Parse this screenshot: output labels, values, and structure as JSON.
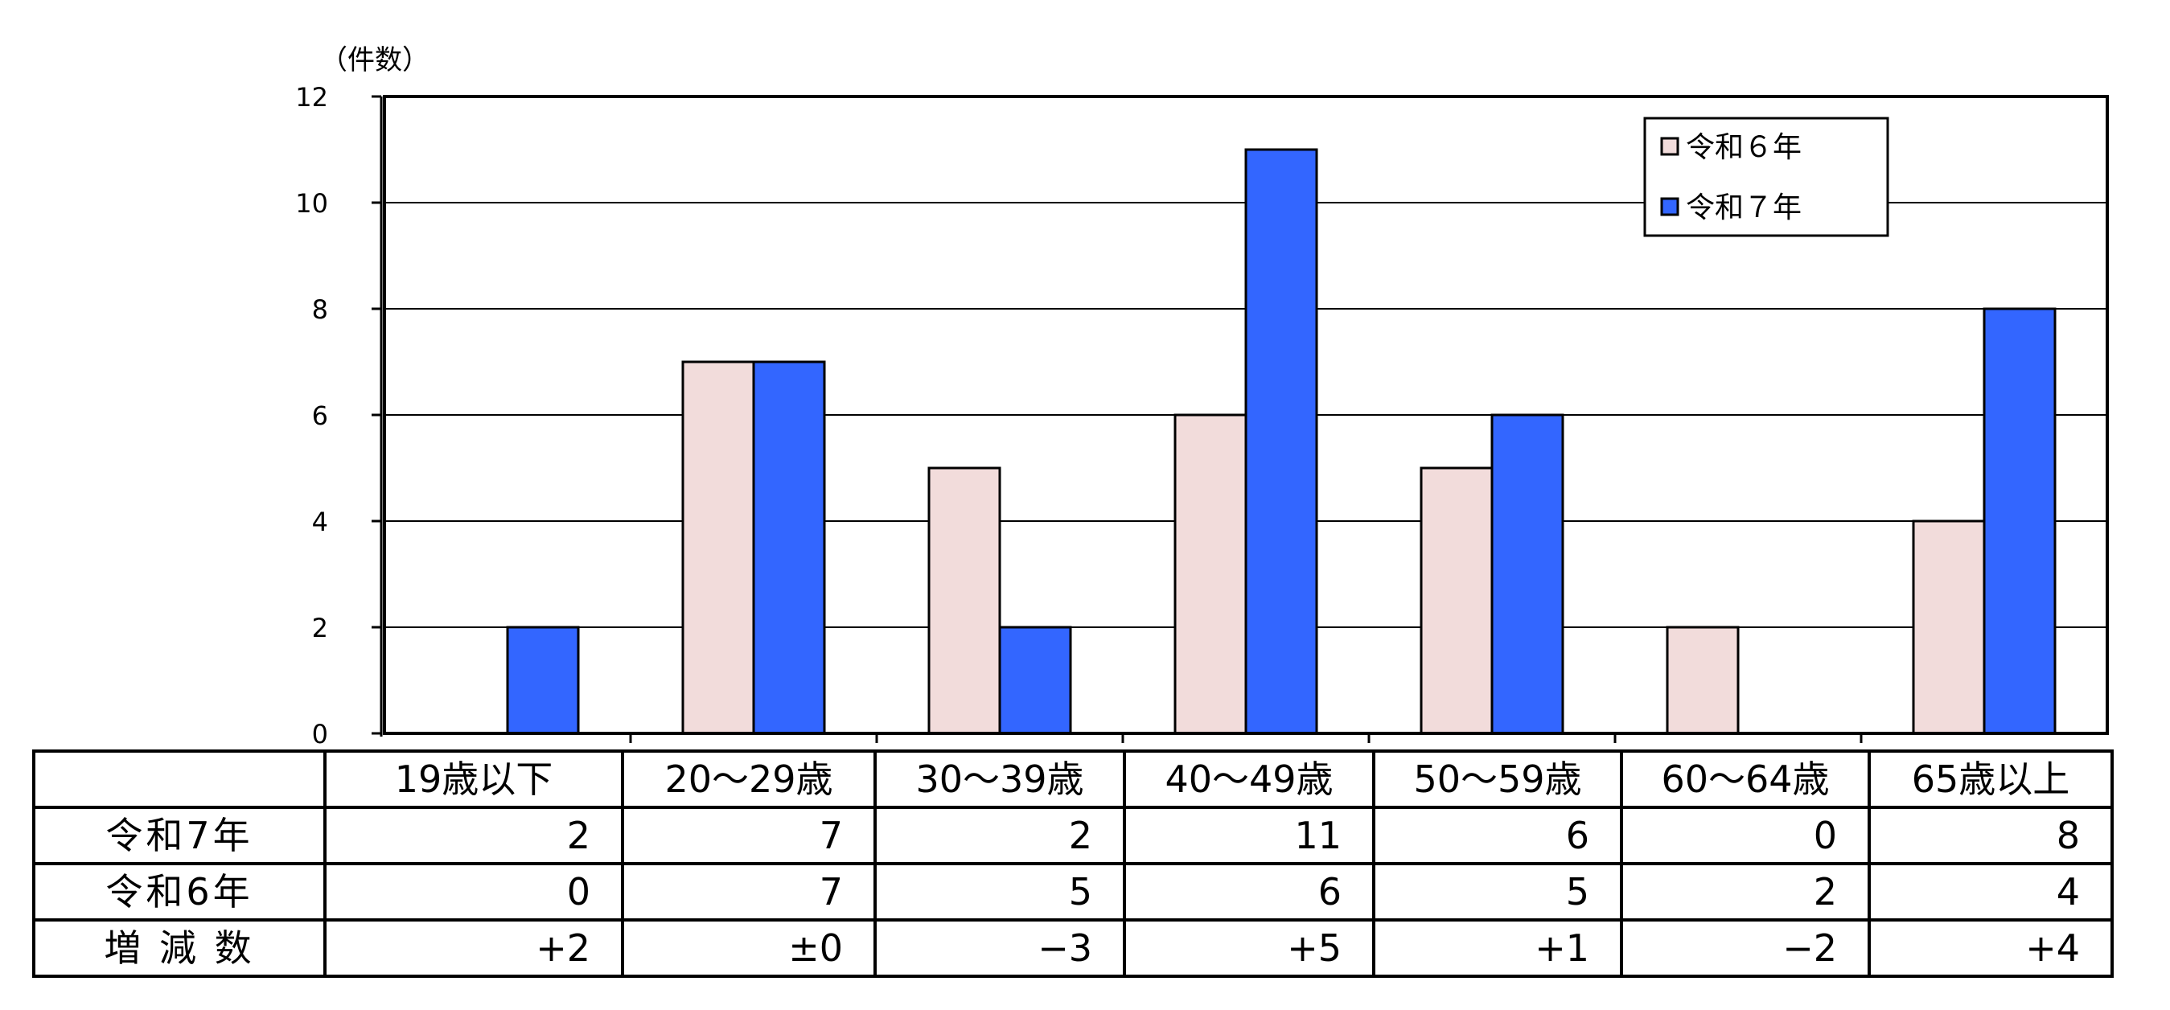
{
  "chart_data": {
    "type": "bar",
    "ylabel": "（件数）",
    "ylim": [
      0,
      12
    ],
    "yticks": [
      0,
      2,
      4,
      6,
      8,
      10,
      12
    ],
    "grid": true,
    "legend_position": "top-right",
    "categories": [
      "19歳以下",
      "20～29歳",
      "30～39歳",
      "40～49歳",
      "50～59歳",
      "60～64歳",
      "65歳以上"
    ],
    "series": [
      {
        "name": "令和６年",
        "color": "#f2dcdb",
        "values": [
          0,
          7,
          5,
          6,
          5,
          2,
          4
        ]
      },
      {
        "name": "令和７年",
        "color": "#3366ff",
        "values": [
          2,
          7,
          2,
          11,
          6,
          0,
          8
        ]
      }
    ]
  },
  "table": {
    "rows": [
      {
        "label": "令和7年",
        "values": [
          "2",
          "7",
          "2",
          "11",
          "6",
          "0",
          "8"
        ]
      },
      {
        "label": "令和6年",
        "values": [
          "0",
          "7",
          "5",
          "6",
          "5",
          "2",
          "4"
        ]
      },
      {
        "label": "増 減 数",
        "values": [
          "+2",
          "±0",
          "−3",
          "+5",
          "+1",
          "−2",
          "+4"
        ]
      }
    ]
  }
}
